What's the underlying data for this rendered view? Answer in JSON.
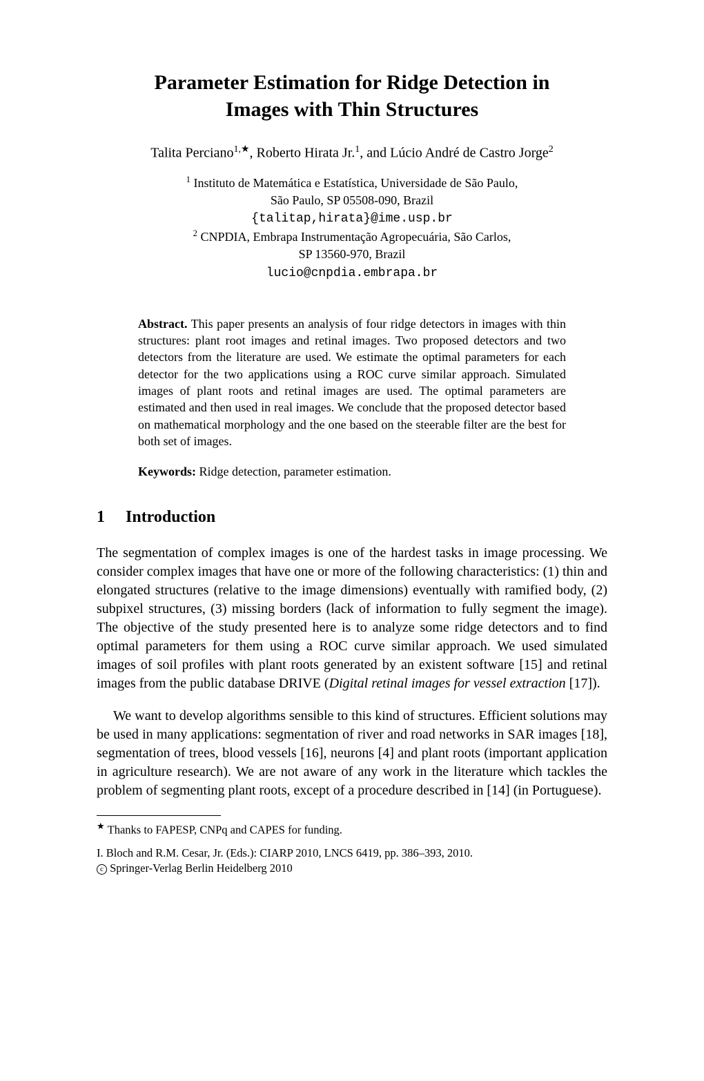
{
  "title_line1": "Parameter Estimation for Ridge Detection in",
  "title_line2": "Images with Thin Structures",
  "authors_html": "Talita Perciano<sup>1,&#9733;</sup>, Roberto Hirata Jr.<sup>1</sup>, and L&uacute;cio Andr&eacute; de Castro Jorge<sup>2</sup>",
  "affil1_sup": "1",
  "affil1_line1": " Instituto de Matem&aacute;tica e Estat&iacute;stica, Universidade de S&atilde;o Paulo,",
  "affil1_line2": "S&atilde;o Paulo, SP 05508-090, Brazil",
  "affil1_email": "{talitap,hirata}@ime.usp.br",
  "affil2_sup": "2",
  "affil2_line1": " CNPDIA, Embrapa Instrumenta&ccedil;&atilde;o Agropecu&aacute;ria, S&atilde;o Carlos,",
  "affil2_line2": "SP 13560-970, Brazil",
  "affil2_email": "lucio@cnpdia.embrapa.br",
  "abstract_label": "Abstract.",
  "abstract_text": " This paper presents an analysis of four ridge detectors in images with thin structures: plant root images and retinal images. Two proposed detectors and two detectors from the literature are used. We estimate the optimal parameters for each detector for the two applications using a ROC curve similar approach. Simulated images of plant roots and retinal images are used. The optimal parameters are estimated and then used in real images. We conclude that the proposed detector based on mathematical morphology and the one based on the steerable filter are the best for both set of images.",
  "keywords_label": "Keywords:",
  "keywords_text": " Ridge detection, parameter estimation.",
  "section_num": "1",
  "section_title": "Introduction",
  "para1": "The segmentation of complex images is one of the hardest tasks in image processing. We consider complex images that have one or more of the following characteristics: (1) thin and elongated structures (relative to the image dimensions) eventually with ramified body, (2) subpixel structures, (3) missing borders (lack of information to fully segment the image). The objective of the study presented here is to analyze some ridge detectors and to find optimal parameters for them using a ROC curve similar approach. We used simulated images of soil profiles with plant roots generated by an existent software [15] and retinal images from the public database DRIVE (<em>Digital retinal images for vessel extraction</em> [17]).",
  "para2": "We want to develop algorithms sensible to this kind of structures. Efficient solutions may be used in many applications: segmentation of river and road networks in SAR images [18], segmentation of trees, blood vessels [16], neurons [4] and plant roots (important application in agriculture research). We are not aware of any work in the literature which tackles the problem of segmenting plant roots, except of a procedure described in [14] (in Portuguese).",
  "footnote_star": "&#9733;",
  "footnote_text": " Thanks to FAPESP, CNPq and CAPES for funding.",
  "imprint_line1": "I. Bloch and R.M. Cesar, Jr. (Eds.): CIARP 2010, LNCS 6419, pp. 386&ndash;393, 2010.",
  "imprint_line2": " Springer-Verlag Berlin Heidelberg 2010"
}
